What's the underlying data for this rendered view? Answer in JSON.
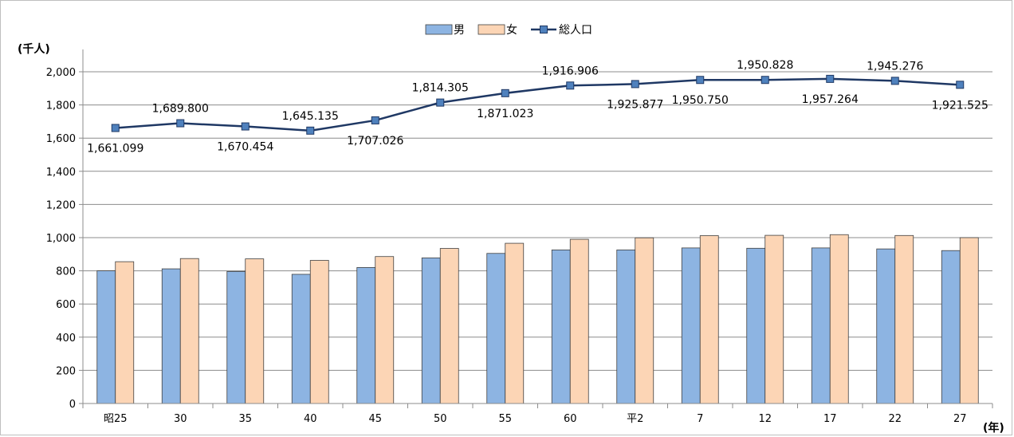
{
  "chart_data": {
    "type": "bar",
    "categories": [
      "昭25",
      "30",
      "35",
      "40",
      "45",
      "50",
      "55",
      "60",
      "平2",
      "7",
      "12",
      "17",
      "22",
      "27"
    ],
    "series": [
      {
        "name": "男",
        "type": "bar",
        "color": "#8DB4E2",
        "values": [
          800,
          812,
          796,
          779,
          820,
          878,
          905,
          926,
          926,
          938,
          936,
          938,
          932,
          922
        ]
      },
      {
        "name": "女",
        "type": "bar",
        "color": "#FCD5B5",
        "values": [
          855,
          874,
          872,
          863,
          886,
          935,
          966,
          990,
          999,
          1012,
          1014,
          1018,
          1013,
          1000
        ]
      },
      {
        "name": "総人口",
        "type": "line",
        "color": "#1F3864",
        "marker_color": "#4F81BD",
        "values": [
          1661.099,
          1689.8,
          1670.454,
          1645.135,
          1707.026,
          1814.305,
          1871.023,
          1916.906,
          1925.877,
          1950.75,
          1950.828,
          1957.264,
          1945.276,
          1921.525
        ],
        "labels": [
          "1,661.099",
          "1,689.800",
          "1,670.454",
          "1,645.135",
          "1,707.026",
          "1,814.305",
          "1,871.023",
          "1,916.906",
          "1,925.877",
          "1,950.750",
          "1,950.828",
          "1,957.264",
          "1,945.276",
          "1,921.525"
        ],
        "label_positions": [
          "below",
          "above",
          "below",
          "above",
          "below",
          "above",
          "below",
          "above",
          "below",
          "below",
          "above",
          "below",
          "above",
          "below"
        ]
      }
    ],
    "ylim": [
      0,
      2000
    ],
    "yticks": [
      0,
      200,
      400,
      600,
      800,
      1000,
      1200,
      1400,
      1600,
      1800,
      2000
    ],
    "ytick_labels": [
      "0",
      "200",
      "400",
      "600",
      "800",
      "1,000",
      "1,200",
      "1,400",
      "1,600",
      "1,800",
      "2,000"
    ],
    "ylabel": "(千人)",
    "xlabel": "(年)",
    "grid": true,
    "legend_position": "top-center"
  }
}
